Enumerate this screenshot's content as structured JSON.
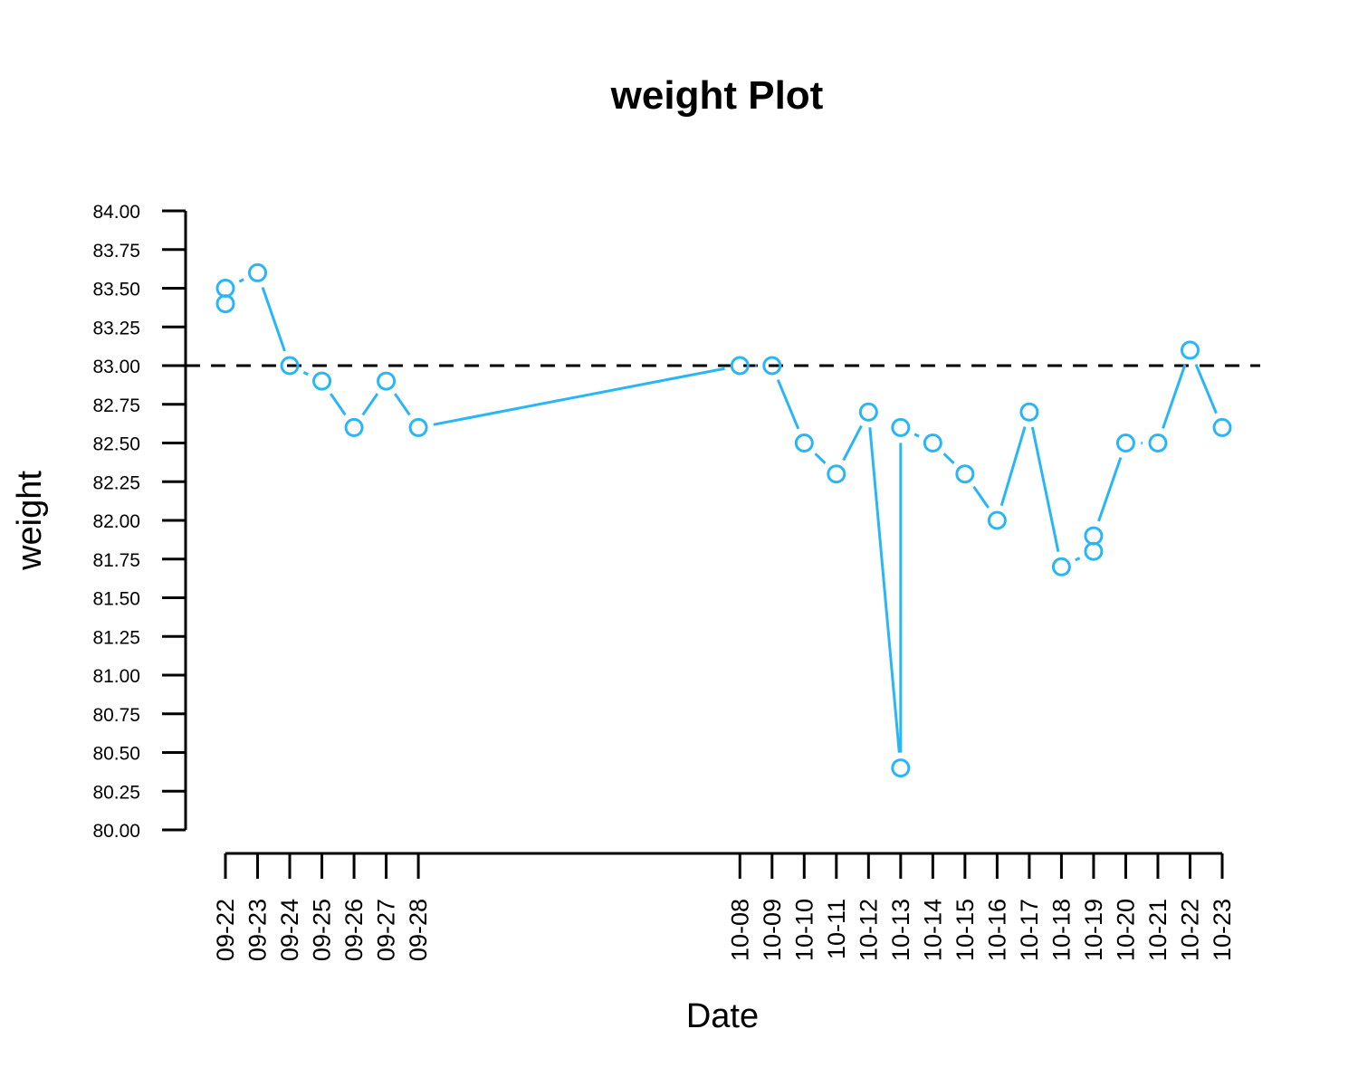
{
  "chart_data": {
    "type": "line",
    "title": "weight  Plot",
    "xlabel": "Date",
    "ylabel": "weight",
    "ylim": [
      80,
      84
    ],
    "y_ticks": [
      "80.00",
      "80.25",
      "80.50",
      "80.75",
      "81.00",
      "81.25",
      "81.50",
      "81.75",
      "82.00",
      "82.25",
      "82.50",
      "82.75",
      "83.00",
      "83.25",
      "83.50",
      "83.75",
      "84.00"
    ],
    "x_ticks": [
      "09-22",
      "09-23",
      "09-24",
      "09-25",
      "09-26",
      "09-27",
      "09-28",
      "10-08",
      "10-09",
      "10-10",
      "10-11",
      "10-12",
      "10-13",
      "10-14",
      "10-15",
      "10-16",
      "10-17",
      "10-18",
      "10-19",
      "10-20",
      "10-21",
      "10-22",
      "10-23"
    ],
    "reference_line": {
      "y": 83.0,
      "style": "dashed",
      "color": "#000000"
    },
    "series_color": "#29b6f6",
    "points": [
      {
        "x": "09-22",
        "y": 83.4
      },
      {
        "x": "09-22",
        "y": 83.5
      },
      {
        "x": "09-23",
        "y": 83.6
      },
      {
        "x": "09-24",
        "y": 83.0
      },
      {
        "x": "09-25",
        "y": 82.9
      },
      {
        "x": "09-26",
        "y": 82.6
      },
      {
        "x": "09-27",
        "y": 82.9
      },
      {
        "x": "09-28",
        "y": 82.6
      },
      {
        "x": "10-08",
        "y": 83.0
      },
      {
        "x": "10-09",
        "y": 83.0
      },
      {
        "x": "10-10",
        "y": 82.5
      },
      {
        "x": "10-11",
        "y": 82.3
      },
      {
        "x": "10-12",
        "y": 82.7
      },
      {
        "x": "10-13",
        "y": 80.4
      },
      {
        "x": "10-13",
        "y": 82.6
      },
      {
        "x": "10-14",
        "y": 82.5
      },
      {
        "x": "10-15",
        "y": 82.3
      },
      {
        "x": "10-16",
        "y": 82.0
      },
      {
        "x": "10-17",
        "y": 82.7
      },
      {
        "x": "10-18",
        "y": 81.7
      },
      {
        "x": "10-19",
        "y": 81.8
      },
      {
        "x": "10-19",
        "y": 81.9
      },
      {
        "x": "10-20",
        "y": 82.5
      },
      {
        "x": "10-21",
        "y": 82.5
      },
      {
        "x": "10-22",
        "y": 83.1
      },
      {
        "x": "10-23",
        "y": 82.6
      }
    ]
  }
}
